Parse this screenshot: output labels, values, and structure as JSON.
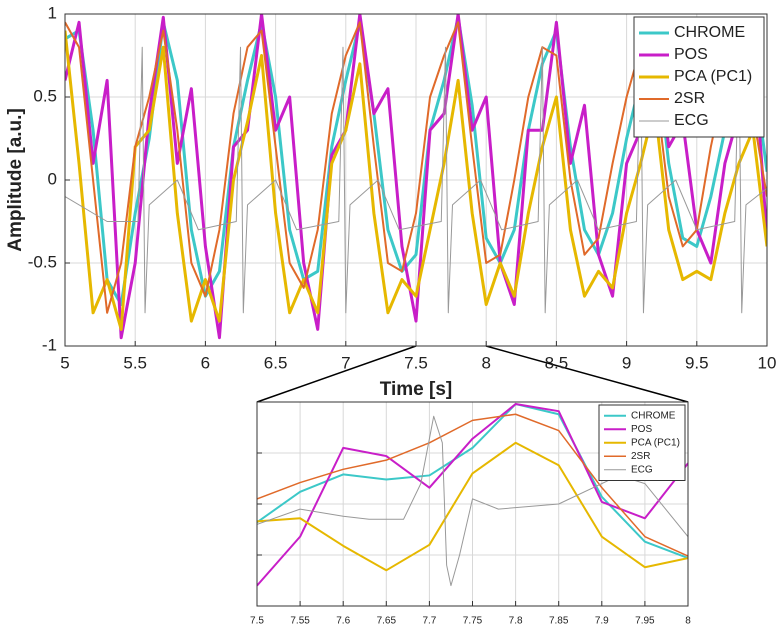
{
  "chart_data": [
    {
      "type": "line",
      "xlabel": "Time [s]",
      "ylabel": "Amplitude [a.u.]",
      "xlim": [
        5,
        10
      ],
      "ylim": [
        -1,
        1
      ],
      "xticks": [
        5,
        5.5,
        6,
        6.5,
        7,
        7.5,
        8,
        8.5,
        9,
        9.5,
        10
      ],
      "yticks": [
        -1,
        -0.5,
        0,
        0.5,
        1
      ],
      "ytick_labels": true,
      "grid": true,
      "legend": "northeast",
      "series": [
        {
          "name": "CHROME",
          "color": "#3cc8c8",
          "linewidth": 3,
          "x": [
            5.0,
            5.1,
            5.2,
            5.3,
            5.4,
            5.5,
            5.6,
            5.7,
            5.8,
            5.9,
            6.0,
            6.1,
            6.2,
            6.3,
            6.4,
            6.5,
            6.6,
            6.7,
            6.8,
            6.9,
            7.0,
            7.1,
            7.2,
            7.3,
            7.4,
            7.5,
            7.6,
            7.7,
            7.8,
            7.9,
            8.0,
            8.1,
            8.2,
            8.3,
            8.4,
            8.5,
            8.6,
            8.7,
            8.8,
            8.9,
            9.0,
            9.1,
            9.2,
            9.3,
            9.4,
            9.5,
            9.6,
            9.7,
            9.8,
            9.9,
            10.0
          ],
          "values": [
            0.85,
            0.9,
            0.3,
            -0.6,
            -0.75,
            -0.2,
            0.25,
            0.95,
            0.6,
            -0.3,
            -0.7,
            -0.55,
            0.2,
            0.6,
            0.95,
            0.5,
            -0.3,
            -0.6,
            -0.55,
            0.2,
            0.6,
            0.95,
            0.4,
            -0.3,
            -0.55,
            -0.45,
            0.3,
            0.6,
            0.98,
            0.45,
            -0.35,
            -0.5,
            -0.3,
            0.3,
            0.7,
            0.9,
            0.2,
            -0.3,
            -0.45,
            -0.2,
            0.25,
            0.6,
            0.85,
            0.1,
            -0.35,
            -0.4,
            -0.1,
            0.3,
            0.75,
            0.7,
            0.05
          ]
        },
        {
          "name": "POS",
          "color": "#c81ec8",
          "linewidth": 3,
          "x": [
            5.0,
            5.1,
            5.2,
            5.3,
            5.4,
            5.5,
            5.6,
            5.7,
            5.8,
            5.9,
            6.0,
            6.1,
            6.2,
            6.3,
            6.4,
            6.5,
            6.6,
            6.7,
            6.8,
            6.9,
            7.0,
            7.1,
            7.2,
            7.3,
            7.4,
            7.5,
            7.6,
            7.7,
            7.8,
            7.9,
            8.0,
            8.1,
            8.2,
            8.3,
            8.4,
            8.5,
            8.6,
            8.7,
            8.8,
            8.9,
            9.0,
            9.1,
            9.2,
            9.3,
            9.4,
            9.5,
            9.6,
            9.7,
            9.8,
            9.9,
            10.0
          ],
          "values": [
            0.6,
            0.95,
            0.1,
            0.6,
            -0.95,
            -0.5,
            0.4,
            0.98,
            0.1,
            0.55,
            -0.4,
            -0.95,
            0.2,
            0.3,
            1.0,
            0.3,
            0.5,
            -0.5,
            -0.9,
            0.15,
            0.3,
            1.0,
            0.4,
            0.55,
            -0.4,
            -0.85,
            0.3,
            0.4,
            1.0,
            0.3,
            0.5,
            -0.5,
            -0.75,
            0.3,
            0.3,
            0.95,
            0.1,
            0.45,
            -0.45,
            -0.7,
            0.1,
            0.3,
            0.9,
            0.2,
            0.35,
            -0.3,
            -0.5,
            0.1,
            0.4,
            0.85,
            -0.35
          ]
        },
        {
          "name": "PCA (PC1)",
          "color": "#e6b800",
          "linewidth": 3,
          "x": [
            5.0,
            5.1,
            5.2,
            5.3,
            5.4,
            5.5,
            5.6,
            5.7,
            5.8,
            5.9,
            6.0,
            6.1,
            6.2,
            6.3,
            6.4,
            6.5,
            6.6,
            6.7,
            6.8,
            6.9,
            7.0,
            7.1,
            7.2,
            7.3,
            7.4,
            7.5,
            7.6,
            7.7,
            7.8,
            7.9,
            8.0,
            8.1,
            8.2,
            8.3,
            8.4,
            8.5,
            8.6,
            8.7,
            8.8,
            8.9,
            9.0,
            9.1,
            9.2,
            9.3,
            9.4,
            9.5,
            9.6,
            9.7,
            9.8,
            9.9,
            10.0
          ],
          "values": [
            0.9,
            0.1,
            -0.8,
            -0.6,
            -0.9,
            0.2,
            0.3,
            0.8,
            -0.2,
            -0.85,
            -0.6,
            -0.85,
            0.0,
            0.35,
            0.75,
            -0.2,
            -0.8,
            -0.6,
            -0.8,
            0.1,
            0.3,
            0.7,
            -0.2,
            -0.8,
            -0.6,
            -0.7,
            -0.3,
            0.1,
            0.6,
            -0.2,
            -0.75,
            -0.5,
            -0.7,
            -0.2,
            0.2,
            0.5,
            -0.3,
            -0.7,
            -0.55,
            -0.65,
            -0.2,
            0.1,
            0.45,
            -0.3,
            -0.6,
            -0.55,
            -0.6,
            -0.2,
            0.1,
            0.3,
            -0.4
          ]
        },
        {
          "name": "2SR",
          "color": "#e06a2a",
          "linewidth": 2,
          "x": [
            5.0,
            5.1,
            5.2,
            5.3,
            5.4,
            5.5,
            5.6,
            5.7,
            5.8,
            5.9,
            6.0,
            6.1,
            6.2,
            6.3,
            6.4,
            6.5,
            6.6,
            6.7,
            6.8,
            6.9,
            7.0,
            7.1,
            7.2,
            7.3,
            7.4,
            7.5,
            7.6,
            7.7,
            7.8,
            7.9,
            8.0,
            8.1,
            8.2,
            8.3,
            8.4,
            8.5,
            8.6,
            8.7,
            8.8,
            8.9,
            9.0,
            9.1,
            9.2,
            9.3,
            9.4,
            9.5,
            9.6,
            9.7,
            9.8,
            9.9,
            10.0
          ],
          "values": [
            0.95,
            0.8,
            0.0,
            -0.8,
            -0.5,
            0.2,
            0.5,
            0.9,
            0.3,
            -0.5,
            -0.7,
            -0.3,
            0.4,
            0.8,
            0.9,
            0.2,
            -0.5,
            -0.65,
            -0.3,
            0.4,
            0.75,
            0.95,
            0.2,
            -0.5,
            -0.55,
            -0.2,
            0.5,
            0.75,
            0.95,
            0.2,
            -0.5,
            -0.45,
            0.0,
            0.5,
            0.8,
            0.75,
            0.0,
            -0.45,
            -0.35,
            0.1,
            0.5,
            0.8,
            0.6,
            -0.1,
            -0.4,
            -0.3,
            0.2,
            0.6,
            0.8,
            0.4,
            -0.1
          ]
        },
        {
          "name": "ECG",
          "color": "#999999",
          "linewidth": 1,
          "x": [
            5.0,
            5.3,
            5.52,
            5.55,
            5.57,
            5.6,
            5.8,
            5.95,
            6.22,
            6.25,
            6.27,
            6.3,
            6.5,
            6.65,
            6.95,
            6.98,
            7.0,
            7.03,
            7.23,
            7.38,
            7.68,
            7.71,
            7.73,
            7.76,
            7.96,
            8.11,
            8.37,
            8.4,
            8.42,
            8.45,
            8.65,
            8.8,
            9.07,
            9.1,
            9.12,
            9.15,
            9.35,
            9.5,
            9.77,
            9.8,
            9.82,
            9.85,
            10.0
          ],
          "values": [
            -0.1,
            -0.25,
            -0.25,
            0.8,
            -0.8,
            -0.15,
            0.0,
            -0.3,
            -0.25,
            0.8,
            -0.8,
            -0.15,
            0.0,
            -0.3,
            -0.25,
            0.8,
            -0.8,
            -0.15,
            0.0,
            -0.3,
            -0.25,
            0.8,
            -0.8,
            -0.15,
            0.0,
            -0.3,
            -0.25,
            0.8,
            -0.8,
            -0.15,
            0.0,
            -0.3,
            -0.25,
            0.8,
            -0.8,
            -0.15,
            0.0,
            -0.3,
            -0.25,
            0.8,
            -0.8,
            -0.15,
            -0.05
          ]
        }
      ]
    },
    {
      "type": "line",
      "xlim": [
        7.5,
        8
      ],
      "ylim": [
        -1,
        1
      ],
      "xticks": [
        7.5,
        7.55,
        7.6,
        7.65,
        7.7,
        7.75,
        7.8,
        7.85,
        7.9,
        7.95,
        8
      ],
      "yticks": [
        -1,
        -0.5,
        0,
        0.5,
        1
      ],
      "ytick_labels": false,
      "grid": true,
      "legend": "northeast",
      "series": [
        {
          "name": "CHROME",
          "color": "#3cc8c8",
          "linewidth": 2,
          "x": [
            7.5,
            7.55,
            7.6,
            7.65,
            7.7,
            7.75,
            7.8,
            7.85,
            7.9,
            7.95,
            8.0
          ],
          "values": [
            -0.18,
            0.12,
            0.29,
            0.24,
            0.28,
            0.55,
            0.98,
            0.88,
            0.07,
            -0.37,
            -0.53
          ]
        },
        {
          "name": "POS",
          "color": "#c81ec8",
          "linewidth": 2,
          "x": [
            7.5,
            7.55,
            7.6,
            7.65,
            7.7,
            7.75,
            7.8,
            7.85,
            7.9,
            7.95,
            8.0
          ],
          "values": [
            -0.8,
            -0.32,
            0.55,
            0.47,
            0.16,
            0.64,
            0.98,
            0.91,
            0.02,
            -0.14,
            0.4
          ]
        },
        {
          "name": "PCA (PC1)",
          "color": "#e6b800",
          "linewidth": 2,
          "x": [
            7.5,
            7.55,
            7.6,
            7.65,
            7.7,
            7.75,
            7.8,
            7.85,
            7.9,
            7.95,
            8.0
          ],
          "values": [
            -0.17,
            -0.14,
            -0.41,
            -0.65,
            -0.4,
            0.3,
            0.6,
            0.38,
            -0.32,
            -0.62,
            -0.53
          ]
        },
        {
          "name": "2SR",
          "color": "#e06a2a",
          "linewidth": 1.5,
          "x": [
            7.5,
            7.55,
            7.6,
            7.65,
            7.7,
            7.75,
            7.8,
            7.85,
            7.9,
            7.95,
            8.0
          ],
          "values": [
            0.05,
            0.21,
            0.34,
            0.43,
            0.6,
            0.82,
            0.88,
            0.72,
            0.16,
            -0.32,
            -0.51
          ]
        },
        {
          "name": "ECG",
          "color": "#999999",
          "linewidth": 1,
          "x": [
            7.5,
            7.55,
            7.6,
            7.63,
            7.67,
            7.69,
            7.705,
            7.715,
            7.72,
            7.725,
            7.735,
            7.75,
            7.78,
            7.85,
            7.92,
            7.95,
            8.0
          ],
          "values": [
            -0.2,
            -0.05,
            -0.12,
            -0.15,
            -0.15,
            0.2,
            0.86,
            0.6,
            -0.6,
            -0.8,
            -0.5,
            0.05,
            -0.05,
            0.0,
            0.28,
            0.2,
            -0.32
          ]
        }
      ]
    }
  ]
}
